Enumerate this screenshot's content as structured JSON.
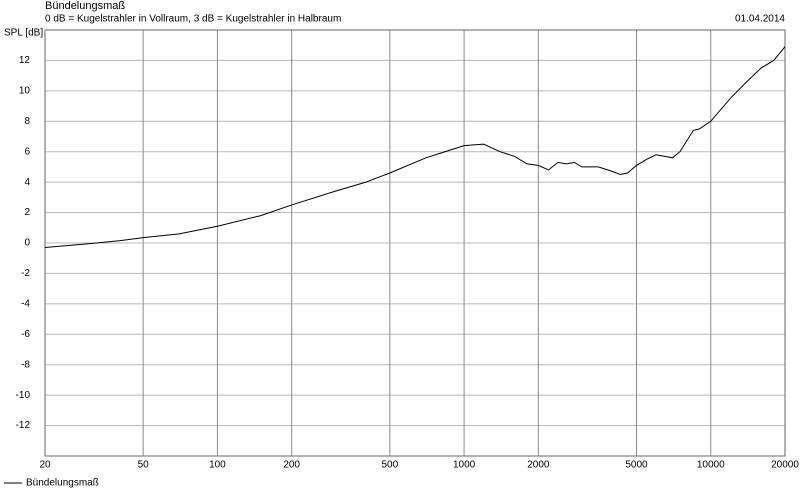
{
  "chart_data": {
    "type": "line",
    "title": "Bündelungsmaß",
    "subtitle": "0 dB = Kugelstrahler in Vollraum, 3 dB = Kugelstrahler in Halbraum",
    "date": "01.04.2014",
    "y_label": "SPL [dB]",
    "log_x": true,
    "grid": true,
    "xlim": [
      20,
      20000
    ],
    "xticks": [
      20,
      50,
      100,
      200,
      500,
      1000,
      2000,
      5000,
      10000,
      20000
    ],
    "ylim": [
      -14,
      14
    ],
    "yticks": [
      -12,
      -10,
      -8,
      -6,
      -4,
      -2,
      0,
      2,
      4,
      6,
      8,
      10,
      12
    ],
    "x": [
      20,
      30,
      40,
      50,
      70,
      100,
      150,
      200,
      300,
      400,
      500,
      700,
      800,
      1000,
      1200,
      1400,
      1600,
      1800,
      2000,
      2200,
      2400,
      2600,
      2800,
      3000,
      3500,
      4000,
      4300,
      4600,
      5000,
      5500,
      6000,
      7000,
      7500,
      8500,
      9000,
      10000,
      12000,
      14000,
      16000,
      18000,
      20000
    ],
    "series": [
      {
        "name": "Bündelungsmaß",
        "color": "#000000",
        "values": [
          -0.3,
          -0.05,
          0.15,
          0.35,
          0.6,
          1.1,
          1.8,
          2.5,
          3.4,
          4.0,
          4.6,
          5.6,
          5.9,
          6.4,
          6.5,
          6.0,
          5.7,
          5.2,
          5.1,
          4.8,
          5.3,
          5.2,
          5.3,
          5.0,
          5.0,
          4.7,
          4.5,
          4.6,
          5.1,
          5.5,
          5.8,
          5.6,
          6.0,
          7.4,
          7.5,
          8.0,
          9.5,
          10.6,
          11.5,
          12.0,
          12.9
        ]
      }
    ]
  }
}
